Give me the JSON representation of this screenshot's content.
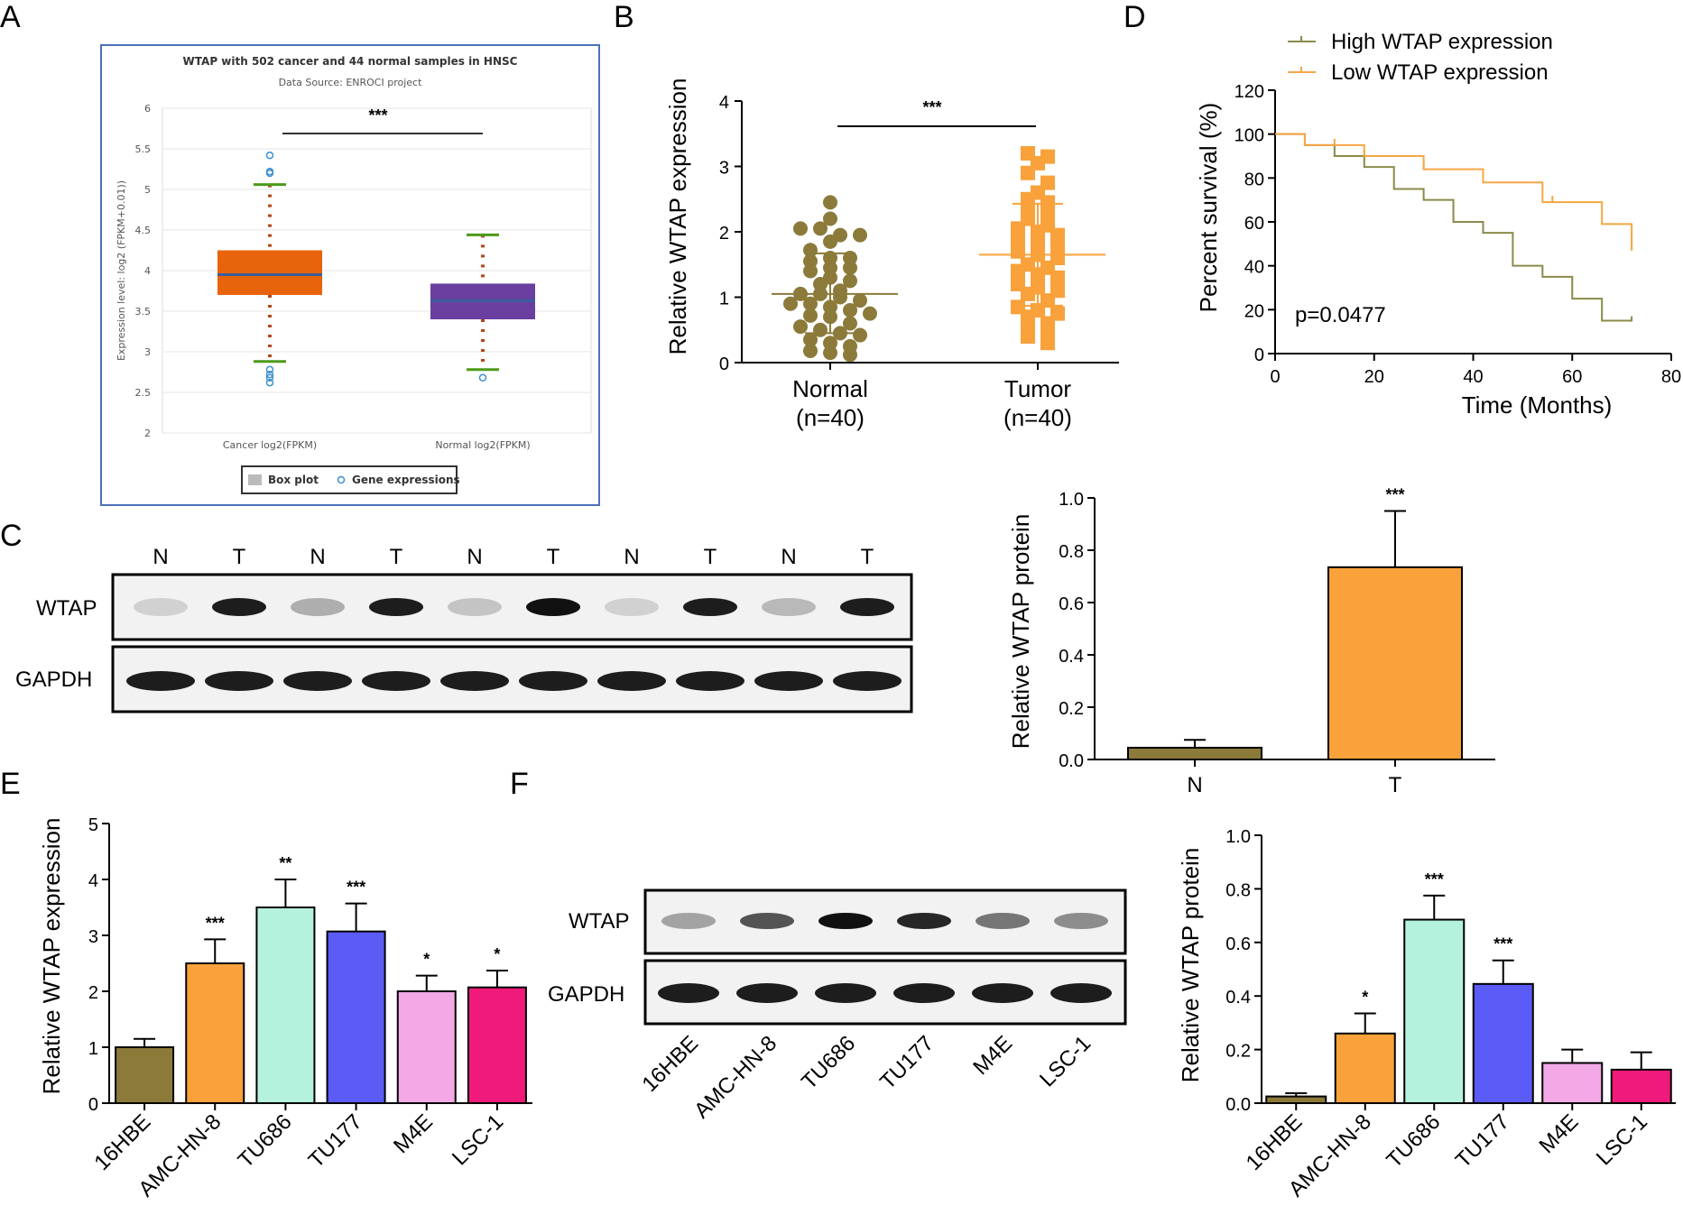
{
  "panels": {
    "A": "A",
    "B": "B",
    "C": "C",
    "D": "D",
    "E": "E",
    "F": "F"
  },
  "colors": {
    "normal": "#8B7A3A",
    "tumor": "#F9A13B",
    "cancer_box": "#E8640C",
    "normal_box": "#6A3FA0",
    "high": "#8B8A4A",
    "low": "#F5A646",
    "lines": [
      "#8B7A3A",
      "#F9A13B",
      "#B5F2DD",
      "#5B5BF5",
      "#F2A9E6",
      "#F01A7A"
    ]
  },
  "western": {
    "c_lanes": [
      "N",
      "T",
      "N",
      "T",
      "N",
      "T",
      "N",
      "T",
      "N",
      "T"
    ],
    "wtap_label": "WTAP",
    "gapdh_label": "GAPDH",
    "wtap_intensity_c": [
      0.15,
      0.95,
      0.3,
      0.95,
      0.2,
      1.0,
      0.15,
      0.95,
      0.25,
      0.95
    ],
    "f_lanes": [
      "16HBE",
      "AMC-HN-8",
      "TU686",
      "TU177",
      "M4E",
      "LSC-1"
    ],
    "wtap_intensity_f": [
      0.35,
      0.7,
      1.0,
      0.9,
      0.55,
      0.45
    ]
  },
  "chart_data": [
    {
      "panel": "A",
      "type": "box",
      "title": "WTAP with 502 cancer and 44 normal samples in HNSC",
      "subtitle": "Data Source: ENROCI project",
      "ylabel": "Expression level: log2 (FPKM+0.01))",
      "ylim": [
        2,
        6
      ],
      "yticks": [
        "2",
        "2.5",
        "3",
        "3.5",
        "4",
        "4.5",
        "5",
        "5.5",
        "6"
      ],
      "categories": [
        "Cancer log2(FPKM)",
        "Normal log2(FPKM)"
      ],
      "boxes": [
        {
          "q1": 3.7,
          "median": 3.95,
          "q3": 4.25,
          "whisker_low": 2.88,
          "whisker_high": 5.06,
          "outliers": [
            5.42,
            5.22,
            5.2,
            2.78,
            2.72,
            2.68,
            2.62
          ]
        },
        {
          "q1": 3.4,
          "median": 3.63,
          "q3": 3.84,
          "whisker_low": 2.78,
          "whisker_high": 4.44,
          "outliers": [
            2.68
          ]
        }
      ],
      "significance": "***",
      "legend": [
        "Box plot",
        "Gene expressions"
      ]
    },
    {
      "panel": "B",
      "type": "scatter",
      "ylabel": "Relative WTAP expression",
      "ylim": [
        0,
        4
      ],
      "yticks": [
        "0",
        "1",
        "2",
        "3",
        "4"
      ],
      "categories": [
        "Normal",
        "Tumor"
      ],
      "category_n": [
        "(n=40)",
        "(n=40)"
      ],
      "series": [
        {
          "name": "Normal",
          "mean": 1.05,
          "sd_low": 0.45,
          "sd_high": 1.67,
          "values": [
            2.45,
            2.2,
            2.05,
            2.05,
            1.95,
            1.95,
            1.85,
            1.72,
            1.6,
            1.6,
            1.55,
            1.45,
            1.45,
            1.4,
            1.3,
            1.25,
            1.2,
            1.1,
            1.05,
            1.05,
            1.0,
            0.95,
            0.9,
            0.9,
            0.85,
            0.8,
            0.75,
            0.72,
            0.7,
            0.6,
            0.55,
            0.5,
            0.45,
            0.42,
            0.35,
            0.3,
            0.25,
            0.18,
            0.15,
            0.12
          ]
        },
        {
          "name": "Tumor",
          "mean": 1.65,
          "sd_low": 0.87,
          "sd_high": 2.43,
          "values": [
            3.2,
            3.15,
            3.05,
            2.9,
            2.75,
            2.6,
            2.5,
            2.45,
            2.35,
            2.3,
            2.2,
            2.1,
            2.05,
            2.0,
            1.95,
            1.85,
            1.8,
            1.75,
            1.7,
            1.65,
            1.6,
            1.5,
            1.45,
            1.4,
            1.35,
            1.3,
            1.2,
            1.15,
            1.1,
            1.05,
            0.95,
            0.85,
            0.8,
            0.75,
            0.7,
            0.6,
            0.55,
            0.5,
            0.4,
            0.3
          ]
        }
      ],
      "significance": "***"
    },
    {
      "panel": "D",
      "type": "line",
      "ylabel": "Percent survival (%)",
      "xlabel": "Time (Months)",
      "xlim": [
        0,
        80
      ],
      "ylim": [
        0,
        120
      ],
      "xticks": [
        "0",
        "20",
        "40",
        "60",
        "80"
      ],
      "yticks": [
        "0",
        "20",
        "40",
        "60",
        "80",
        "100",
        "120"
      ],
      "annotation": "p=0.0477",
      "series": [
        {
          "name": "High WTAP expression",
          "x": [
            0,
            6,
            12,
            18,
            24,
            30,
            36,
            42,
            48,
            54,
            60,
            66,
            72
          ],
          "y": [
            100,
            95,
            90,
            85,
            75,
            70,
            60,
            55,
            40,
            35,
            25,
            15,
            17
          ],
          "censor_x": []
        },
        {
          "name": "Low WTAP expression",
          "x": [
            0,
            6,
            18,
            30,
            42,
            54,
            66,
            72
          ],
          "y": [
            100,
            95,
            90,
            84,
            78,
            69,
            59,
            47
          ],
          "censor_x": [
            12,
            18,
            30,
            56,
            72
          ]
        }
      ]
    },
    {
      "panel": "C",
      "type": "bar",
      "ylabel": "Relative WTAP protein",
      "ylim": [
        0,
        1.0
      ],
      "yticks": [
        "0.0",
        "0.2",
        "0.4",
        "0.6",
        "0.8",
        "1.0"
      ],
      "categories": [
        "N",
        "T"
      ],
      "values": [
        0.045,
        0.735
      ],
      "errors": [
        0.03,
        0.215
      ],
      "significance": [
        "",
        "***"
      ]
    },
    {
      "panel": "E",
      "type": "bar",
      "ylabel": "Relative WTAP expression",
      "ylim": [
        0,
        5
      ],
      "yticks": [
        "0",
        "1",
        "2",
        "3",
        "4",
        "5"
      ],
      "categories": [
        "16HBE",
        "AMC-HN-8",
        "TU686",
        "TU177",
        "M4E",
        "LSC-1"
      ],
      "values": [
        1.0,
        2.5,
        3.5,
        3.07,
        2.0,
        2.07
      ],
      "errors": [
        0.15,
        0.43,
        0.5,
        0.5,
        0.28,
        0.3
      ],
      "significance": [
        "",
        "***",
        "**",
        "***",
        "*",
        "*"
      ]
    },
    {
      "panel": "F",
      "type": "bar",
      "ylabel": "Relative WTAP protein",
      "ylim": [
        0,
        1.0
      ],
      "yticks": [
        "0.0",
        "0.2",
        "0.4",
        "0.6",
        "0.8",
        "1.0"
      ],
      "categories": [
        "16HBE",
        "AMC-HN-8",
        "TU686",
        "TU177",
        "M4E",
        "LSC-1"
      ],
      "values": [
        0.025,
        0.26,
        0.685,
        0.445,
        0.15,
        0.125
      ],
      "errors": [
        0.012,
        0.075,
        0.09,
        0.088,
        0.05,
        0.065
      ],
      "significance": [
        "",
        "*",
        "***",
        "***",
        "",
        ""
      ]
    }
  ]
}
